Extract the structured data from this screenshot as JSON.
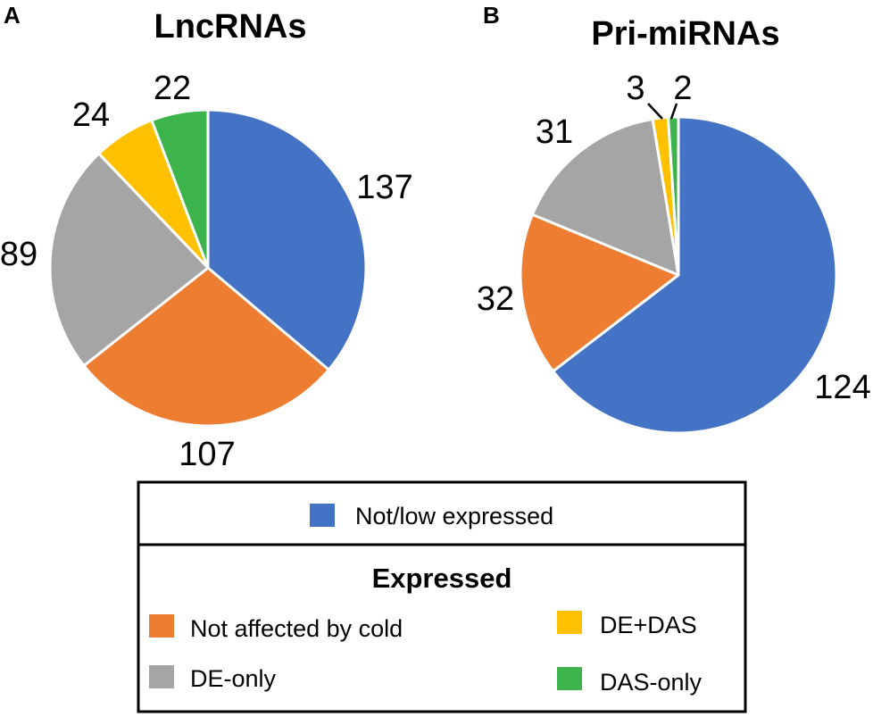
{
  "colors": {
    "not_low_expressed": "#4472c4",
    "not_affected_by_cold": "#ed7d31",
    "de_only": "#a5a5a5",
    "de_das": "#ffc000",
    "das_only": "#3cb44b"
  },
  "chart_data": [
    {
      "type": "pie",
      "panel": "A",
      "title": "LncRNAs",
      "start": "top",
      "direction": "clockwise",
      "slices": [
        {
          "category": "Not/low expressed",
          "value": 137,
          "label": "137",
          "color_key": "not_low_expressed"
        },
        {
          "category": "Not affected by cold",
          "value": 107,
          "label": "107",
          "color_key": "not_affected_by_cold"
        },
        {
          "category": "DE-only",
          "value": 89,
          "label": "89",
          "color_key": "de_only"
        },
        {
          "category": "DE+DAS",
          "value": 24,
          "label": "24",
          "color_key": "de_das"
        },
        {
          "category": "DAS-only",
          "value": 22,
          "label": "22",
          "color_key": "das_only"
        }
      ]
    },
    {
      "type": "pie",
      "panel": "B",
      "title": "Pri-miRNAs",
      "start": "top",
      "direction": "clockwise",
      "slices": [
        {
          "category": "Not/low expressed",
          "value": 124,
          "label": "124",
          "color_key": "not_low_expressed"
        },
        {
          "category": "Not affected by cold",
          "value": 32,
          "label": "32",
          "color_key": "not_affected_by_cold"
        },
        {
          "category": "DE-only",
          "value": 31,
          "label": "31",
          "color_key": "de_only"
        },
        {
          "category": "DE+DAS",
          "value": 3,
          "label": "3",
          "color_key": "de_das"
        },
        {
          "category": "DAS-only",
          "value": 2,
          "label": "2",
          "color_key": "das_only"
        }
      ]
    }
  ],
  "legend": {
    "top_item": {
      "label": "Not/low expressed",
      "color_key": "not_low_expressed"
    },
    "heading": "Expressed",
    "items": [
      {
        "label": "Not affected by cold",
        "color_key": "not_affected_by_cold"
      },
      {
        "label": "DE+DAS",
        "color_key": "de_das"
      },
      {
        "label": "DE-only",
        "color_key": "de_only"
      },
      {
        "label": "DAS-only",
        "color_key": "das_only"
      }
    ]
  }
}
